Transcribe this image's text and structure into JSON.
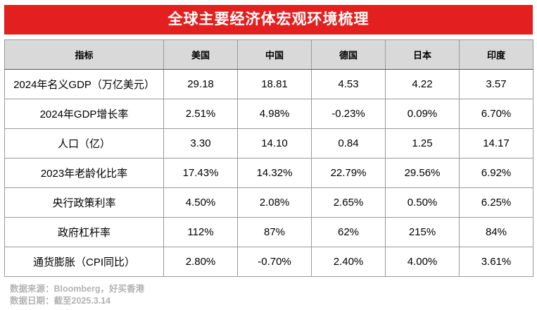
{
  "title": "全球主要经济体宏观环境梳理",
  "table": {
    "headers": [
      "指标",
      "美国",
      "中国",
      "德国",
      "日本",
      "印度"
    ],
    "rows": [
      [
        "2024年名义GDP（万亿美元）",
        "29.18",
        "18.81",
        "4.53",
        "4.22",
        "3.57"
      ],
      [
        "2024年GDP增长率",
        "2.51%",
        "4.98%",
        "-0.23%",
        "0.09%",
        "6.70%"
      ],
      [
        "人口（亿）",
        "3.30",
        "14.10",
        "0.84",
        "1.25",
        "14.17"
      ],
      [
        "2023年老龄化比率",
        "17.43%",
        "14.32%",
        "22.79%",
        "29.56%",
        "6.92%"
      ],
      [
        "央行政策利率",
        "4.50%",
        "2.08%",
        "2.65%",
        "0.50%",
        "6.25%"
      ],
      [
        "政府杠杆率",
        "112%",
        "87%",
        "62%",
        "215%",
        "84%"
      ],
      [
        "通货膨胀（CPI同比）",
        "2.80%",
        "-0.70%",
        "2.40%",
        "4.00%",
        "3.61%"
      ]
    ]
  },
  "footer": {
    "source": "数据来源：Bloomberg，好买香港",
    "date": "数据日期：截至2025.3.14"
  },
  "colors": {
    "title_bg": "#e41f1f",
    "header_bg": "#d9d9d9",
    "footer_text": "#b3b3b3"
  }
}
